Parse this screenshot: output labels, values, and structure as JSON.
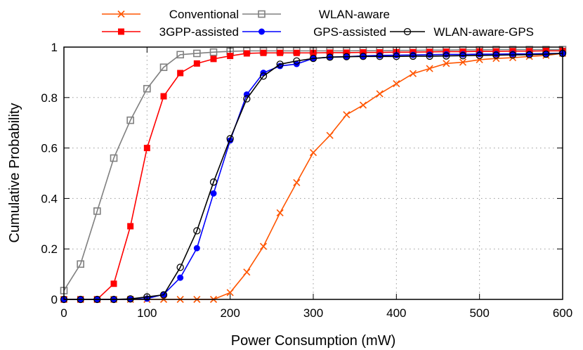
{
  "chart_data": {
    "type": "line",
    "xlabel": "Power Consumption (mW)",
    "ylabel": "Cumulative Probability",
    "xlim": [
      0,
      600
    ],
    "ylim": [
      0,
      1
    ],
    "xticks": [
      0,
      100,
      200,
      300,
      400,
      500,
      600
    ],
    "yticks": [
      0,
      0.2,
      0.4,
      0.6,
      0.8,
      1
    ],
    "xtick_labels": [
      "0",
      "100",
      "200",
      "300",
      "400",
      "500",
      "600"
    ],
    "ytick_labels": [
      "0",
      "0.2",
      "0.4",
      "0.6",
      "0.8",
      "1"
    ],
    "grid": true,
    "legend_position": "top (outside, two rows)",
    "x": [
      0,
      20,
      40,
      60,
      80,
      100,
      120,
      140,
      160,
      180,
      200,
      220,
      240,
      260,
      280,
      300,
      320,
      340,
      360,
      380,
      400,
      420,
      440,
      460,
      480,
      500,
      520,
      540,
      560,
      580,
      600
    ],
    "series": [
      {
        "name": "Conventional",
        "color": "#ff5500",
        "marker": "cross",
        "values": [
          0,
          0,
          0,
          0,
          0,
          0,
          0,
          0,
          0,
          0,
          0.027,
          0.108,
          0.21,
          0.343,
          0.463,
          0.582,
          0.65,
          0.732,
          0.77,
          0.815,
          0.855,
          0.895,
          0.915,
          0.935,
          0.94,
          0.95,
          0.955,
          0.958,
          0.963,
          0.967,
          0.975
        ]
      },
      {
        "name": "WLAN-aware",
        "color": "#808080",
        "marker": "open-square",
        "values": [
          0.035,
          0.14,
          0.35,
          0.56,
          0.71,
          0.835,
          0.92,
          0.97,
          0.975,
          0.98,
          0.983,
          0.985,
          0.985,
          0.985,
          0.985,
          0.985,
          0.985,
          0.985,
          0.986,
          0.986,
          0.987,
          0.987,
          0.988,
          0.988,
          0.989,
          0.989,
          0.99,
          0.99,
          0.99,
          0.99,
          0.99
        ]
      },
      {
        "name": "3GPP-assisted",
        "color": "#ff0000",
        "marker": "filled-square",
        "values": [
          0,
          0,
          0,
          0.062,
          0.29,
          0.6,
          0.805,
          0.897,
          0.935,
          0.953,
          0.965,
          0.975,
          0.977,
          0.977,
          0.977,
          0.977,
          0.978,
          0.978,
          0.979,
          0.979,
          0.98,
          0.98,
          0.981,
          0.982,
          0.982,
          0.983,
          0.983,
          0.984,
          0.984,
          0.985,
          0.985
        ]
      },
      {
        "name": "GPS-assisted",
        "color": "#0000ff",
        "marker": "filled-circle",
        "values": [
          0,
          0,
          0,
          0,
          0,
          0.003,
          0.02,
          0.086,
          0.203,
          0.42,
          0.63,
          0.812,
          0.898,
          0.925,
          0.933,
          0.955,
          0.96,
          0.962,
          0.965,
          0.967,
          0.968,
          0.969,
          0.97,
          0.971,
          0.971,
          0.972,
          0.972,
          0.973,
          0.973,
          0.974,
          0.975
        ]
      },
      {
        "name": "WLAN-aware-GPS",
        "color": "#000000",
        "marker": "open-circle",
        "values": [
          0,
          0,
          0,
          0,
          0.002,
          0.01,
          0.018,
          0.127,
          0.272,
          0.465,
          0.637,
          0.795,
          0.885,
          0.932,
          0.945,
          0.955,
          0.96,
          0.962,
          0.963,
          0.963,
          0.963,
          0.964,
          0.964,
          0.965,
          0.966,
          0.967,
          0.968,
          0.969,
          0.97,
          0.972,
          0.975
        ]
      }
    ]
  }
}
